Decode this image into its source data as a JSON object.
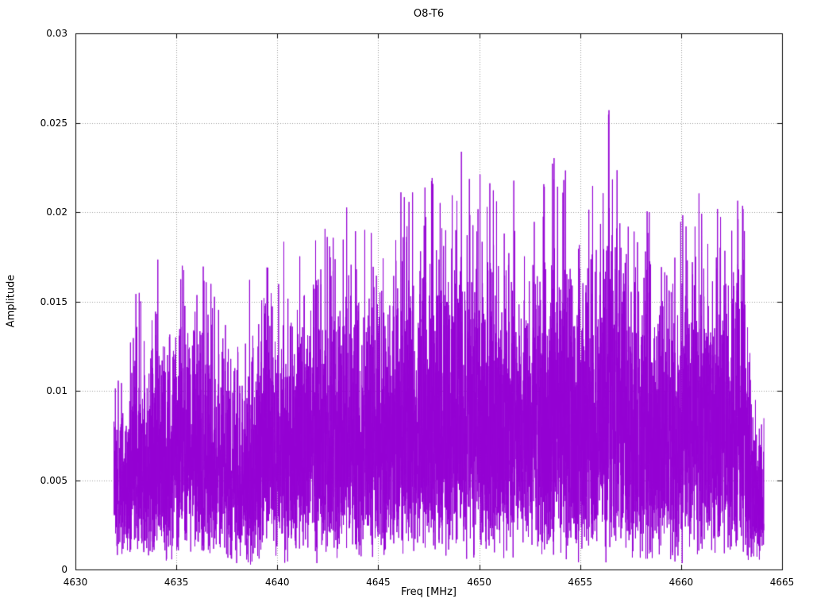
{
  "page": {
    "background": "#ffffff"
  },
  "chart_data": {
    "type": "line",
    "subtype": "noise-spectrum",
    "title": "O8-T6",
    "xlabel": "Freq [MHz]",
    "ylabel": "Amplitude",
    "xlim": [
      4630,
      4665
    ],
    "ylim": [
      0,
      0.03
    ],
    "x_ticks": [
      4630,
      4635,
      4640,
      4645,
      4650,
      4655,
      4660,
      4665
    ],
    "x_tick_labels": [
      "4630",
      "4635",
      "4640",
      "4645",
      "4650",
      "4655",
      "4660",
      "4665"
    ],
    "y_ticks": [
      0,
      0.005,
      0.01,
      0.015,
      0.02,
      0.025,
      0.03
    ],
    "y_tick_labels": [
      "0",
      "0.005",
      "0.01",
      "0.015",
      "0.02",
      "0.025",
      "0.03"
    ],
    "grid": true,
    "grid_style": "dotted",
    "grid_color": "#9a9a9a",
    "frame_color": "#000000",
    "legend": "none",
    "series_color": "#9400d3",
    "data_range": [
      4631.9,
      4664.1
    ],
    "samples_per_mhz": 220,
    "seed": 1337,
    "noise_model": {
      "distribution": "rayleigh",
      "sigma_factor": 0.3,
      "floor": 0.0002
    },
    "envelope_x": [
      4631.9,
      4632.5,
      4633,
      4633.5,
      4634,
      4634.5,
      4635,
      4635.5,
      4636,
      4636.5,
      4637,
      4637.5,
      4638,
      4638.5,
      4639,
      4639.5,
      4640,
      4640.5,
      4641,
      4641.5,
      4642,
      4642.5,
      4643,
      4643.5,
      4644,
      4644.5,
      4645,
      4645.5,
      4646,
      4646.5,
      4647,
      4647.5,
      4648,
      4648.5,
      4649,
      4649.5,
      4650,
      4650.5,
      4651,
      4651.5,
      4652,
      4652.5,
      4653,
      4653.5,
      4654,
      4654.5,
      4655,
      4655.5,
      4656,
      4656.5,
      4657,
      4657.5,
      4658,
      4658.5,
      4659,
      4659.5,
      4660,
      4660.5,
      4661,
      4661.5,
      4662,
      4662.5,
      4663,
      4663.5,
      4664.1
    ],
    "envelope_peak": [
      0.0148,
      0.012,
      0.0164,
      0.0135,
      0.0178,
      0.015,
      0.018,
      0.0163,
      0.0179,
      0.0175,
      0.0146,
      0.0142,
      0.0141,
      0.016,
      0.0168,
      0.0178,
      0.0204,
      0.0172,
      0.019,
      0.0183,
      0.0203,
      0.0186,
      0.0227,
      0.0199,
      0.0186,
      0.0192,
      0.0195,
      0.0186,
      0.0213,
      0.0205,
      0.022,
      0.021,
      0.0237,
      0.0206,
      0.0239,
      0.0236,
      0.0237,
      0.0216,
      0.0218,
      0.021,
      0.0239,
      0.0206,
      0.0212,
      0.0221,
      0.0245,
      0.0211,
      0.0202,
      0.0216,
      0.021,
      0.0265,
      0.0226,
      0.0211,
      0.0221,
      0.0196,
      0.0189,
      0.0205,
      0.0234,
      0.0216,
      0.0233,
      0.0206,
      0.0199,
      0.0196,
      0.0213,
      0.013,
      0.009
    ]
  }
}
